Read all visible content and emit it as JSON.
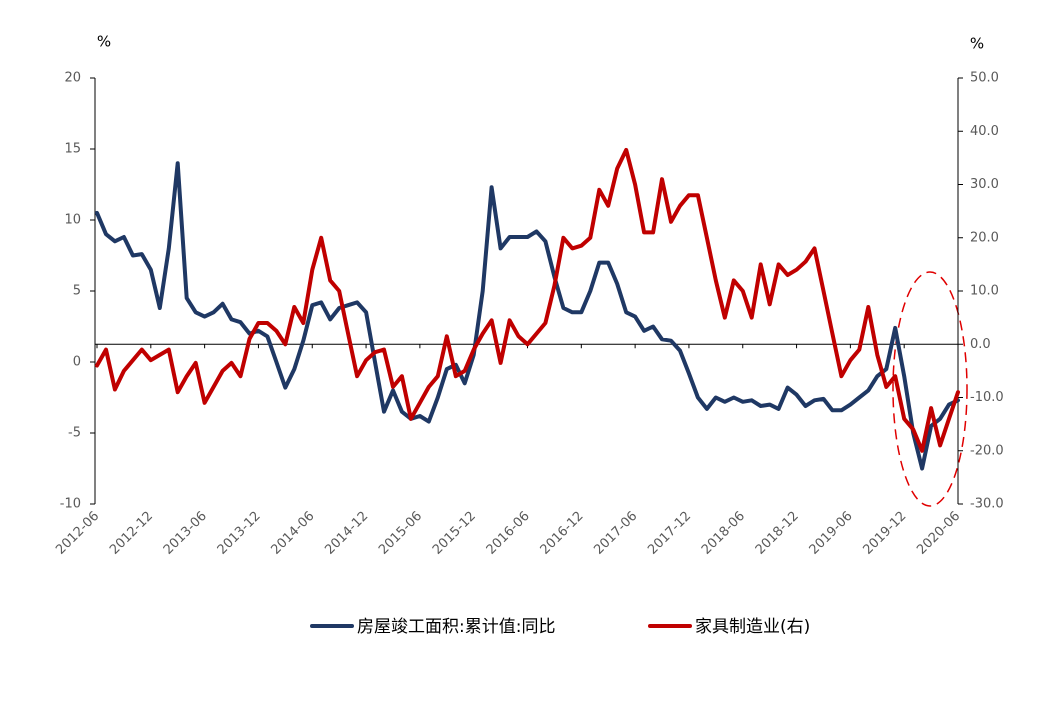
{
  "chart_data": {
    "type": "line",
    "y_label": "%",
    "y2_label": "%",
    "categories": [
      "2012-06",
      null,
      null,
      null,
      null,
      null,
      "2012-12",
      null,
      null,
      null,
      null,
      null,
      "2013-06",
      null,
      null,
      null,
      null,
      null,
      "2013-12",
      null,
      null,
      null,
      null,
      null,
      "2014-06",
      null,
      null,
      null,
      null,
      null,
      "2014-12",
      null,
      null,
      null,
      null,
      null,
      "2015-06",
      null,
      null,
      null,
      null,
      null,
      "2015-12",
      null,
      null,
      null,
      null,
      null,
      "2016-06",
      null,
      null,
      null,
      null,
      null,
      "2016-12",
      null,
      null,
      null,
      null,
      null,
      "2017-06",
      null,
      null,
      null,
      null,
      null,
      "2017-12",
      null,
      null,
      null,
      null,
      null,
      "2018-06",
      null,
      null,
      null,
      null,
      null,
      "2018-12",
      null,
      null,
      null,
      null,
      null,
      "2019-06",
      null,
      null,
      null,
      null,
      null,
      "2019-12",
      null,
      null,
      null,
      null,
      null,
      "2020-06"
    ],
    "series": [
      {
        "name": "房屋竣工面积:累计值:同比",
        "color": "#1f3864",
        "axis": "y",
        "values": [
          10.5,
          9,
          8.5,
          8.8,
          7.5,
          7.6,
          6.5,
          3.8,
          8,
          14,
          4.5,
          3.5,
          3.2,
          3.5,
          4.1,
          3,
          2.8,
          2,
          2.2,
          1.8,
          0,
          -1.8,
          -0.5,
          1.5,
          4,
          4.2,
          3,
          3.8,
          4,
          4.2,
          3.5,
          0,
          -3.5,
          -2,
          -3.5,
          -4,
          -3.8,
          -4.2,
          -2.5,
          -0.5,
          -0.2,
          -1.5,
          0.5,
          5,
          12.3,
          8,
          8.8,
          8.8,
          8.8,
          9.2,
          8.5,
          6,
          3.8,
          3.5,
          3.5,
          5,
          7,
          7,
          5.5,
          3.5,
          3.2,
          2.2,
          2.5,
          1.6,
          1.5,
          0.8,
          -0.8,
          -2.5,
          -3.3,
          -2.5,
          -2.8,
          -2.5,
          -2.8,
          -2.7,
          -3.1,
          -3,
          -3.3,
          -1.8,
          -2.3,
          -3.1,
          -2.7,
          -2.6,
          -3.4,
          -3.4,
          -3,
          -2.5,
          -2,
          -1,
          -0.5,
          2.4,
          -1,
          -5,
          -7.5,
          -4.5,
          -4,
          -3,
          -2.7
        ]
      },
      {
        "name": "家具制造业(右)",
        "color": "#c00000",
        "axis": "y2",
        "values": [
          -4,
          -1,
          -8.5,
          -5,
          -3,
          -1,
          -3,
          -2,
          -1,
          -9,
          -6,
          -3.5,
          -11,
          -8,
          -5,
          -3.5,
          -6,
          1,
          4,
          4,
          2.5,
          0,
          7,
          4,
          14,
          20,
          12,
          10,
          2,
          -6,
          -3,
          -1.5,
          -1,
          -8,
          -6,
          -14,
          -11,
          -8,
          -6,
          1.5,
          -6,
          -5,
          -1,
          2,
          4.5,
          -3.5,
          4.5,
          1.5,
          0,
          2,
          4,
          11,
          20,
          18,
          18.5,
          20,
          29,
          26,
          33,
          36.5,
          30,
          21,
          21,
          31,
          23,
          26,
          28,
          28,
          20,
          12,
          5,
          12,
          10,
          5,
          15,
          7.5,
          15,
          13,
          14,
          15.5,
          18,
          10,
          2,
          -6,
          -3,
          -1,
          7,
          -2,
          -8,
          -6,
          -14,
          -16,
          -20,
          -12,
          -19,
          -14,
          -9
        ]
      }
    ],
    "ylim": [
      -10,
      20
    ],
    "yticks": [
      -10,
      -5,
      0,
      5,
      10,
      15,
      20
    ],
    "y2lim": [
      -30,
      50
    ],
    "y2ticks": [
      {
        "value": -30,
        "label": "-30.0"
      },
      {
        "value": -20,
        "label": "-20.0"
      },
      {
        "value": -10,
        "label": "-10.0"
      },
      {
        "value": 0,
        "label": "0.0"
      },
      {
        "value": 10,
        "label": "10.0"
      },
      {
        "value": 20,
        "label": "20.0"
      },
      {
        "value": 30,
        "label": "30.0"
      },
      {
        "value": 40,
        "label": "40.0"
      },
      {
        "value": 50,
        "label": "50.0"
      }
    ],
    "legend": "bottom"
  }
}
